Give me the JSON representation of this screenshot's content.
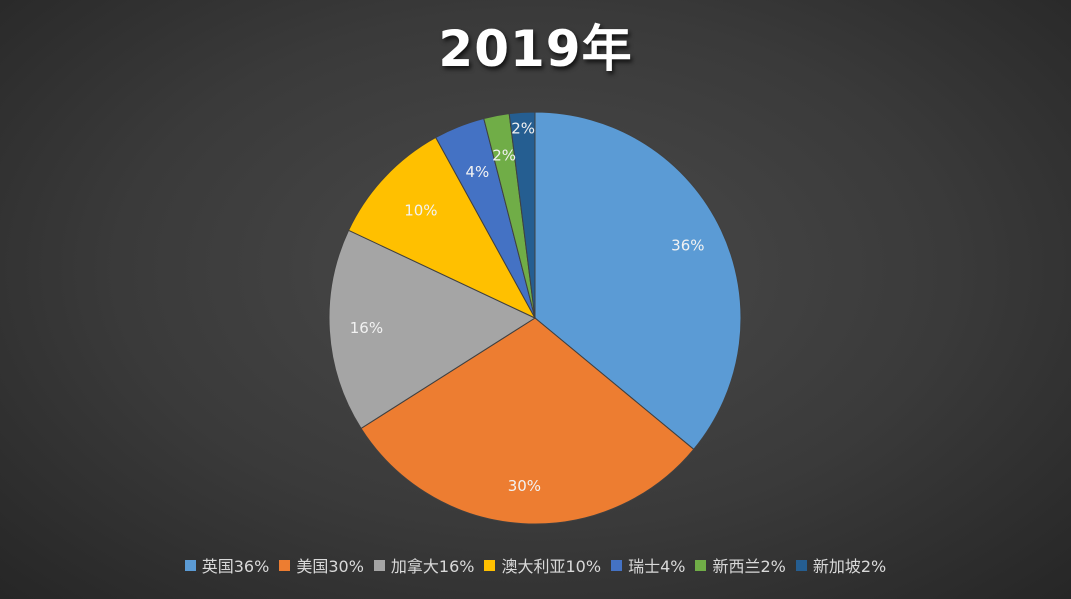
{
  "chart_data": {
    "type": "pie",
    "title": "2019年",
    "legend_position": "bottom",
    "slices": [
      {
        "name": "英国",
        "value": 36,
        "label": "36%",
        "legend_label": "英国36%",
        "color": "#5b9bd5"
      },
      {
        "name": "美国",
        "value": 30,
        "label": "30%",
        "legend_label": "美国30%",
        "color": "#ed7d31"
      },
      {
        "name": "加拿大",
        "value": 16,
        "label": "16%",
        "legend_label": "加拿大16%",
        "color": "#a5a5a5"
      },
      {
        "name": "澳大利亚",
        "value": 10,
        "label": "10%",
        "legend_label": "澳大利亚10%",
        "color": "#ffc000"
      },
      {
        "name": "瑞士",
        "value": 4,
        "label": "4%",
        "legend_label": "瑞士4%",
        "color": "#4472c4"
      },
      {
        "name": "新西兰",
        "value": 2,
        "label": "2%",
        "legend_label": "新西兰2%",
        "color": "#70ad47"
      },
      {
        "name": "新加坡",
        "value": 2,
        "label": "2%",
        "legend_label": "新加坡2%",
        "color": "#255e91"
      }
    ]
  }
}
